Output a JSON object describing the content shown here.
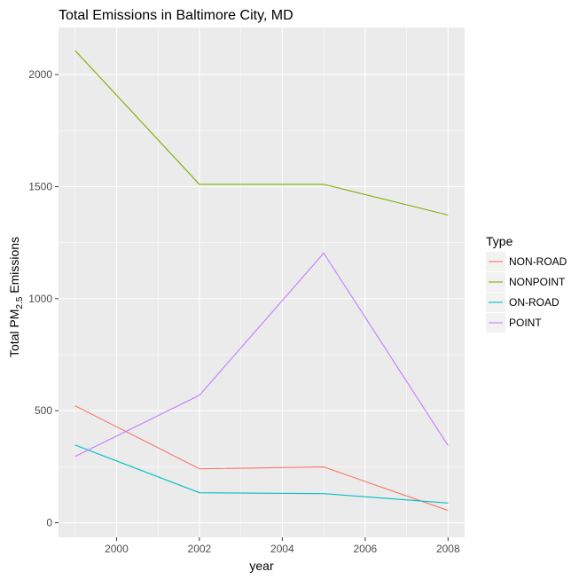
{
  "chart_data": {
    "type": "line",
    "title": "Total Emissions in Baltimore City, MD",
    "xlabel": "year",
    "ylabel_main": "Total PM",
    "ylabel_sub": "2.5",
    "ylabel_tail": " Emissions",
    "x": [
      1999,
      2002,
      2005,
      2008
    ],
    "xlim": [
      1998.6,
      2008.4
    ],
    "ylim": [
      -65,
      2210
    ],
    "x_ticks": [
      2000,
      2002,
      2004,
      2006,
      2008
    ],
    "x_tick_labels": [
      "2000",
      "2002",
      "2004",
      "2006",
      "2008"
    ],
    "y_ticks": [
      0,
      500,
      1000,
      1500,
      2000
    ],
    "y_tick_labels": [
      "0",
      "500",
      "1000",
      "1500",
      "2000"
    ],
    "grid": true,
    "legend_title": "Type",
    "legend_position": "right",
    "series": [
      {
        "name": "NON-ROAD",
        "color": "#F8766D",
        "values": [
          522,
          241,
          249,
          55
        ]
      },
      {
        "name": "NONPOINT",
        "color": "#7CAE00",
        "values": [
          2107,
          1510,
          1510,
          1373
        ]
      },
      {
        "name": "ON-ROAD",
        "color": "#00BFC4",
        "values": [
          347,
          134,
          130,
          88
        ]
      },
      {
        "name": "POINT",
        "color": "#C77CFF",
        "values": [
          296,
          569,
          1203,
          345
        ]
      }
    ]
  }
}
